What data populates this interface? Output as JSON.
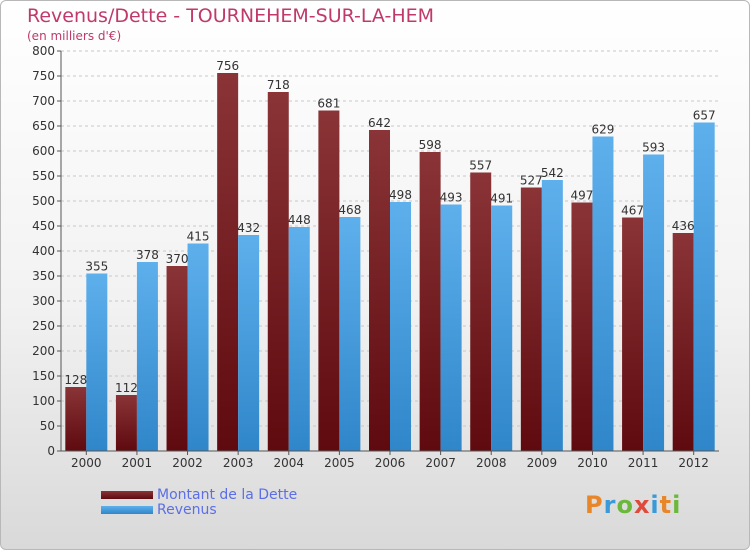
{
  "header": {
    "title": "Revenus/Dette - TOURNEHEM-SUR-LA-HEM",
    "subtitle": "(en milliers d'€)"
  },
  "logo": {
    "text": "Proxiti"
  },
  "colors": {
    "title": "#c0396a",
    "dette_dark": "#5e0a0e",
    "dette_light": "#8a3437",
    "revenus_dark": "#2f86c9",
    "revenus_light": "#5eb0ec",
    "legend_text": "#5b6ee6"
  },
  "chart_data": {
    "type": "bar",
    "categories": [
      "2000",
      "2001",
      "2002",
      "2003",
      "2004",
      "2005",
      "2006",
      "2007",
      "2008",
      "2009",
      "2010",
      "2011",
      "2012"
    ],
    "series": [
      {
        "name": "Montant de la Dette",
        "values": [
          128,
          112,
          370,
          756,
          718,
          681,
          642,
          598,
          557,
          527,
          497,
          467,
          436
        ]
      },
      {
        "name": "Revenus",
        "values": [
          355,
          378,
          415,
          432,
          448,
          468,
          498,
          493,
          491,
          542,
          629,
          593,
          657
        ]
      }
    ],
    "ylim": [
      0,
      800
    ],
    "yticks": [
      0,
      50,
      100,
      150,
      200,
      250,
      300,
      350,
      400,
      450,
      500,
      550,
      600,
      650,
      700,
      750,
      800
    ],
    "grid": true,
    "legend_position": "bottom-left"
  }
}
